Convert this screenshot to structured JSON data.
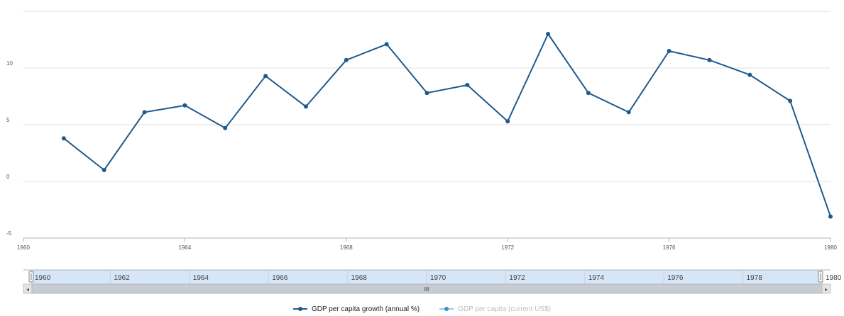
{
  "chart_data": {
    "type": "line",
    "title": "",
    "xlabel": "",
    "ylabel": "",
    "xlim": [
      1960,
      1980
    ],
    "ylim": [
      -5,
      15
    ],
    "y_ticks": [
      -5,
      0,
      5,
      10
    ],
    "x_ticks": [
      1960,
      1964,
      1968,
      1972,
      1976,
      1980
    ],
    "grid": true,
    "legend_position": "bottom-center",
    "series": [
      {
        "name": "GDP per capita growth (annual %)",
        "color": "#1f5a8e",
        "visible": true,
        "x": [
          1961,
          1962,
          1963,
          1964,
          1965,
          1966,
          1967,
          1968,
          1969,
          1970,
          1971,
          1972,
          1973,
          1974,
          1975,
          1976,
          1977,
          1978,
          1979,
          1980
        ],
        "values": [
          3.8,
          1.0,
          6.1,
          6.7,
          4.7,
          9.3,
          6.6,
          10.7,
          12.1,
          7.8,
          8.5,
          5.3,
          13.0,
          7.8,
          6.1,
          11.5,
          10.7,
          9.4,
          7.1,
          -3.1
        ]
      },
      {
        "name": "GDP per capita (current US$)",
        "color": "#3e8fc9",
        "visible": false
      }
    ]
  },
  "navigator": {
    "tick_labels": [
      "1960",
      "1962",
      "1964",
      "1966",
      "1968",
      "1970",
      "1972",
      "1974",
      "1976",
      "1978",
      "1980"
    ],
    "scroll_left_icon": "◂",
    "scroll_right_icon": "▸",
    "scroll_thumb_grip": "III"
  }
}
